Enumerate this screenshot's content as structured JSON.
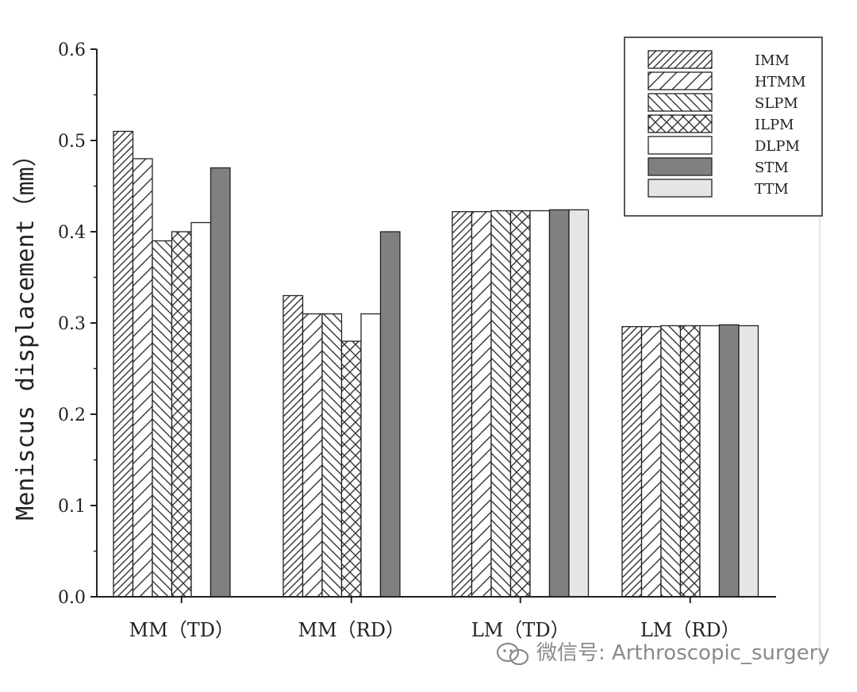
{
  "chart_data": {
    "type": "bar",
    "title": "",
    "xlabel": "",
    "ylabel": "Meniscus displacement（mm）",
    "ylim": [
      0.0,
      0.6
    ],
    "yticks": [
      "0.0",
      "0.1",
      "0.2",
      "0.3",
      "0.4",
      "0.5",
      "0.6"
    ],
    "categories": [
      "MM（TD）",
      "MM（RD）",
      "LM（TD）",
      "LM（RD）"
    ],
    "series": [
      {
        "name": "IMM",
        "pattern": "diag-up",
        "fill": "#ffffff",
        "values": [
          0.51,
          0.33,
          0.422,
          0.296
        ]
      },
      {
        "name": "HTMM",
        "pattern": "diag-up-wide",
        "fill": "#ffffff",
        "values": [
          0.48,
          0.31,
          0.422,
          0.296
        ]
      },
      {
        "name": "SLPM",
        "pattern": "diag-down",
        "fill": "#ffffff",
        "values": [
          0.39,
          0.31,
          0.423,
          0.297
        ]
      },
      {
        "name": "ILPM",
        "pattern": "crosshatch",
        "fill": "#ffffff",
        "values": [
          0.4,
          0.28,
          0.423,
          0.297
        ]
      },
      {
        "name": "DLPM",
        "pattern": "none",
        "fill": "#ffffff",
        "values": [
          0.41,
          0.31,
          0.423,
          0.297
        ]
      },
      {
        "name": "STM",
        "pattern": "none",
        "fill": "#808080",
        "values": [
          0.47,
          0.4,
          0.424,
          0.298
        ]
      },
      {
        "name": "TTM",
        "pattern": "none",
        "fill": "#e6e6e6",
        "values": [
          0.0,
          0.0,
          0.424,
          0.297
        ]
      }
    ],
    "legend_position": "top-right",
    "grid": false
  },
  "watermark": {
    "text": "微信号: Arthroscopic_surgery",
    "icon": "wechat-icon"
  }
}
